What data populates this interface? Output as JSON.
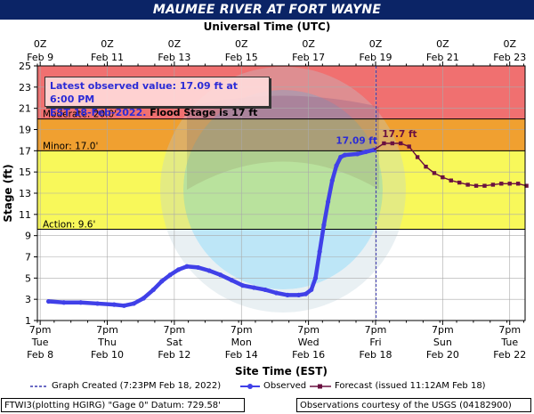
{
  "title": "MAUMEE RIVER AT FORT WAYNE",
  "top_axis_title": "Universal Time (UTC)",
  "info_box": {
    "line1": "Latest observed value: 17.09 ft at 6:00 PM",
    "line2_blue": "EST 18-Feb-2022.",
    "line2_black": " Flood Stage is 17 ft"
  },
  "footer": {
    "graph_created": "Graph Created (7:23PM Feb 18, 2022)",
    "observed": "Observed",
    "forecast": "Forecast (issued 11:12AM Feb 18)"
  },
  "bottom_left": "FTWI3(plotting HGIRG) \"Gage 0\" Datum: 729.58'",
  "bottom_right": "Observations courtesy of the USGS (04182900)",
  "colors": {
    "title_bar": "#0b2466",
    "major": "#f07070",
    "moderate": "#f0a030",
    "minor": "#f8f85a",
    "action": "#ffffff",
    "observed": "#4040e8",
    "forecast": "#6a1040",
    "grid": "#aaaaaa"
  },
  "chart_data": {
    "type": "line",
    "title": "MAUMEE RIVER AT FORT WAYNE",
    "xlabel": "Site Time (EST)",
    "ylabel": "Stage (ft)",
    "x2label": "Universal Time (UTC)",
    "ylim": [
      1,
      25
    ],
    "yticks": [
      1,
      3,
      5,
      7,
      9,
      11,
      13,
      15,
      17,
      19,
      21,
      23,
      25
    ],
    "xlim": [
      "2022-02-08T17:00",
      "2022-02-23T06:00"
    ],
    "x_ticks_bottom": [
      {
        "t": "2022-02-08T19:00",
        "time": "7pm",
        "day": "Tue",
        "date": "Feb 8"
      },
      {
        "t": "2022-02-10T19:00",
        "time": "7pm",
        "day": "Thu",
        "date": "Feb 10"
      },
      {
        "t": "2022-02-12T19:00",
        "time": "7pm",
        "day": "Sat",
        "date": "Feb 12"
      },
      {
        "t": "2022-02-14T19:00",
        "time": "7pm",
        "day": "Mon",
        "date": "Feb 14"
      },
      {
        "t": "2022-02-16T19:00",
        "time": "7pm",
        "day": "Wed",
        "date": "Feb 16"
      },
      {
        "t": "2022-02-18T19:00",
        "time": "7pm",
        "day": "Fri",
        "date": "Feb 18"
      },
      {
        "t": "2022-02-20T19:00",
        "time": "7pm",
        "day": "Sun",
        "date": "Feb 20"
      },
      {
        "t": "2022-02-22T19:00",
        "time": "7pm",
        "day": "Tue",
        "date": "Feb 22"
      }
    ],
    "x_ticks_top": [
      {
        "t": "2022-02-08T19:00",
        "time": "0Z",
        "date": "Feb  9"
      },
      {
        "t": "2022-02-10T19:00",
        "time": "0Z",
        "date": "Feb 11"
      },
      {
        "t": "2022-02-12T19:00",
        "time": "0Z",
        "date": "Feb 13"
      },
      {
        "t": "2022-02-14T19:00",
        "time": "0Z",
        "date": "Feb 15"
      },
      {
        "t": "2022-02-16T19:00",
        "time": "0Z",
        "date": "Feb 17"
      },
      {
        "t": "2022-02-18T19:00",
        "time": "0Z",
        "date": "Feb 19"
      },
      {
        "t": "2022-02-20T19:00",
        "time": "0Z",
        "date": "Feb 21"
      },
      {
        "t": "2022-02-22T19:00",
        "time": "0Z",
        "date": "Feb 23"
      }
    ],
    "thresholds": [
      {
        "name": "Moderate",
        "label": "Moderate:  20.0'",
        "value": 20.0
      },
      {
        "name": "Minor",
        "label": "Minor:  17.0'",
        "value": 17.0
      },
      {
        "name": "Action",
        "label": "Action:  9.6'",
        "value": 9.6
      }
    ],
    "graph_created": "2022-02-18T19:23",
    "series": [
      {
        "name": "Observed",
        "points": [
          [
            "2022-02-09T01:00",
            2.8
          ],
          [
            "2022-02-09T12:00",
            2.7
          ],
          [
            "2022-02-10T00:00",
            2.7
          ],
          [
            "2022-02-10T12:00",
            2.6
          ],
          [
            "2022-02-11T00:00",
            2.5
          ],
          [
            "2022-02-11T07:00",
            2.4
          ],
          [
            "2022-02-11T14:00",
            2.6
          ],
          [
            "2022-02-11T21:00",
            3.1
          ],
          [
            "2022-02-12T04:00",
            3.9
          ],
          [
            "2022-02-12T10:00",
            4.7
          ],
          [
            "2022-02-12T16:00",
            5.3
          ],
          [
            "2022-02-12T22:00",
            5.8
          ],
          [
            "2022-02-13T04:00",
            6.1
          ],
          [
            "2022-02-13T12:00",
            6.0
          ],
          [
            "2022-02-13T20:00",
            5.7
          ],
          [
            "2022-02-14T04:00",
            5.3
          ],
          [
            "2022-02-14T12:00",
            4.8
          ],
          [
            "2022-02-14T20:00",
            4.3
          ],
          [
            "2022-02-15T04:00",
            4.1
          ],
          [
            "2022-02-15T12:00",
            3.9
          ],
          [
            "2022-02-15T20:00",
            3.6
          ],
          [
            "2022-02-16T04:00",
            3.4
          ],
          [
            "2022-02-16T12:00",
            3.4
          ],
          [
            "2022-02-16T17:00",
            3.5
          ],
          [
            "2022-02-16T21:00",
            3.9
          ],
          [
            "2022-02-17T00:00",
            5.0
          ],
          [
            "2022-02-17T03:00",
            7.5
          ],
          [
            "2022-02-17T06:00",
            10.0
          ],
          [
            "2022-02-17T09:00",
            12.2
          ],
          [
            "2022-02-17T12:00",
            14.2
          ],
          [
            "2022-02-17T15:00",
            15.6
          ],
          [
            "2022-02-17T18:00",
            16.4
          ],
          [
            "2022-02-17T21:00",
            16.6
          ],
          [
            "2022-02-18T06:00",
            16.7
          ],
          [
            "2022-02-18T12:00",
            16.9
          ],
          [
            "2022-02-18T18:00",
            17.09
          ]
        ],
        "end_label": "17.09 ft"
      },
      {
        "name": "Forecast",
        "points": [
          [
            "2022-02-19T01:00",
            17.7
          ],
          [
            "2022-02-19T07:00",
            17.7
          ],
          [
            "2022-02-19T13:00",
            17.7
          ],
          [
            "2022-02-19T19:00",
            17.4
          ],
          [
            "2022-02-20T01:00",
            16.4
          ],
          [
            "2022-02-20T07:00",
            15.5
          ],
          [
            "2022-02-20T13:00",
            14.9
          ],
          [
            "2022-02-20T19:00",
            14.5
          ],
          [
            "2022-02-21T01:00",
            14.2
          ],
          [
            "2022-02-21T07:00",
            14.0
          ],
          [
            "2022-02-21T13:00",
            13.8
          ],
          [
            "2022-02-21T19:00",
            13.7
          ],
          [
            "2022-02-22T01:00",
            13.7
          ],
          [
            "2022-02-22T07:00",
            13.8
          ],
          [
            "2022-02-22T13:00",
            13.9
          ],
          [
            "2022-02-22T19:00",
            13.9
          ],
          [
            "2022-02-23T01:00",
            13.9
          ],
          [
            "2022-02-23T07:00",
            13.7
          ]
        ],
        "peak_label": "17.7 ft"
      }
    ]
  }
}
